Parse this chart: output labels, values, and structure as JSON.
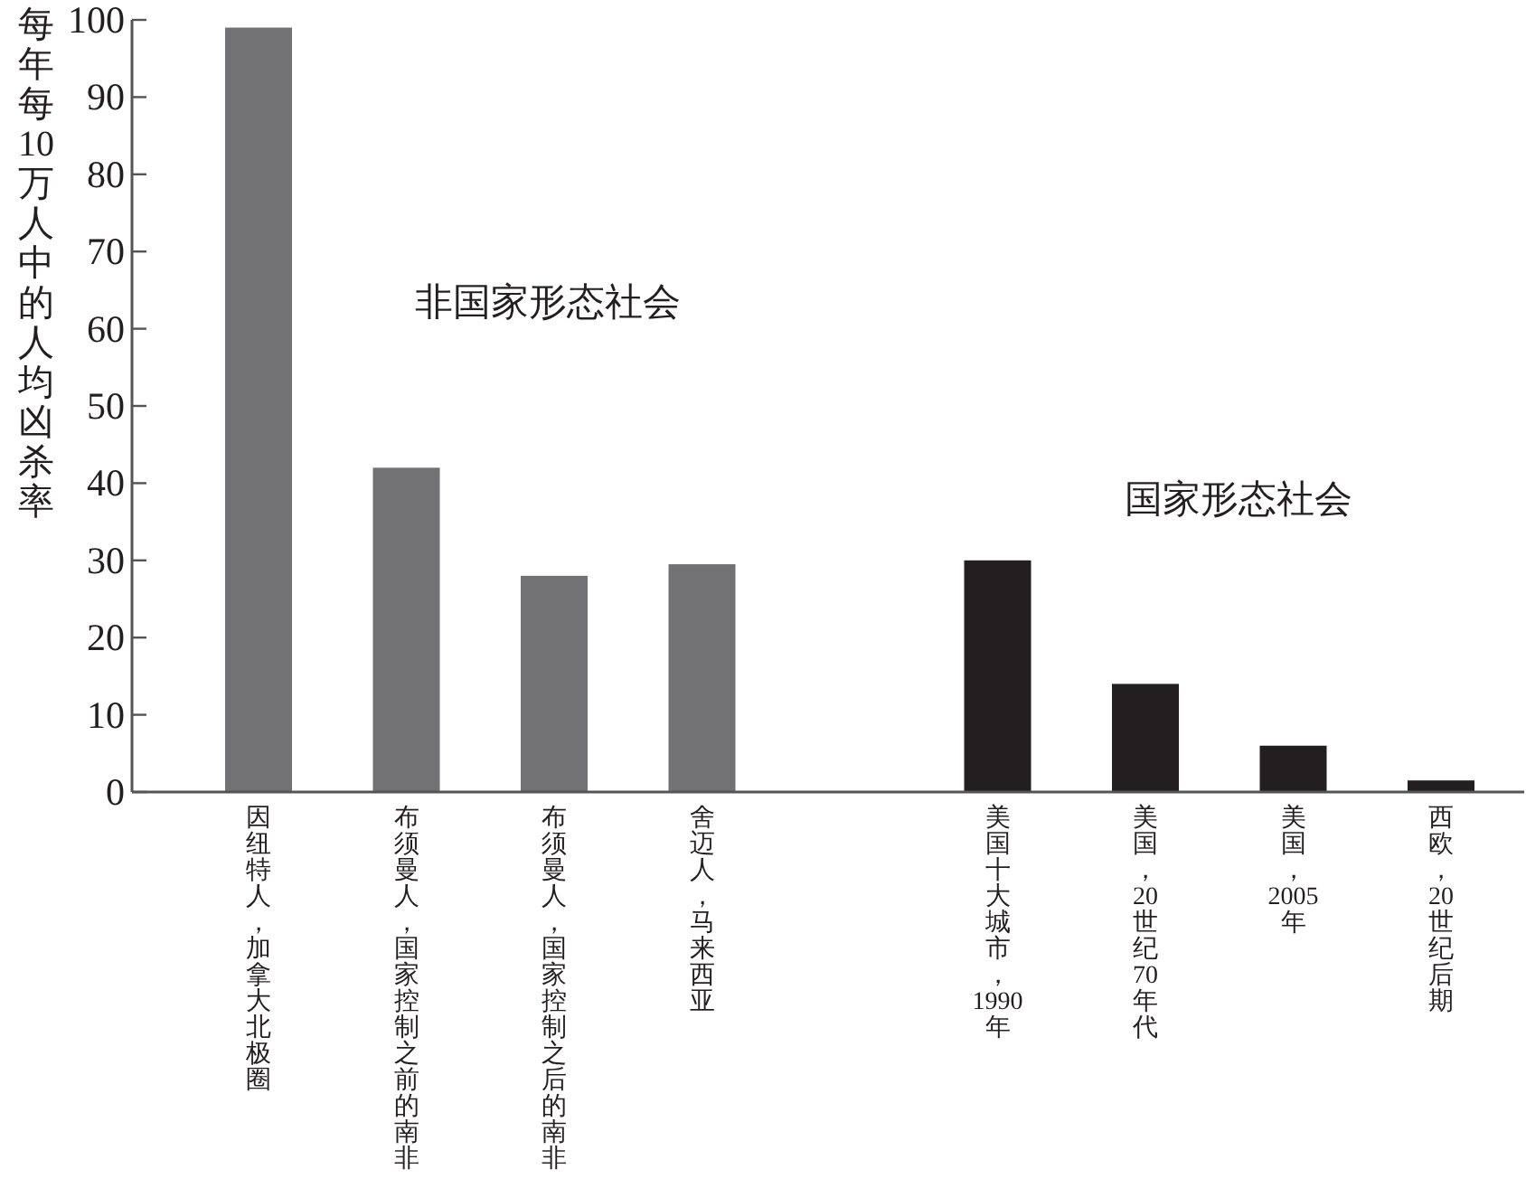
{
  "chart_data": {
    "type": "bar",
    "ylabel": "每年每10万人中的人均凶杀率",
    "categories": [
      "因纽特人，加拿大北极圈",
      "布须曼人，国家控制之前的南非",
      "布须曼人，国家控制之后的南非",
      "舍迈人，马来西亚",
      null,
      "美国十大城市，1990年",
      "美国，20世纪70年代",
      "美国，2005年",
      "西欧，20世纪后期"
    ],
    "values": [
      99,
      42,
      28,
      29.5,
      null,
      30,
      14,
      6,
      1.5
    ],
    "colors": [
      "#727275",
      "#727275",
      "#727275",
      "#727275",
      null,
      "#231f20",
      "#231f20",
      "#231f20",
      "#231f20"
    ],
    "ylim": [
      0,
      100
    ],
    "yticks": [
      0,
      10,
      20,
      30,
      40,
      50,
      60,
      70,
      80,
      90,
      100
    ],
    "annotations": [
      "非国家形态社会",
      "国家形态社会"
    ]
  }
}
